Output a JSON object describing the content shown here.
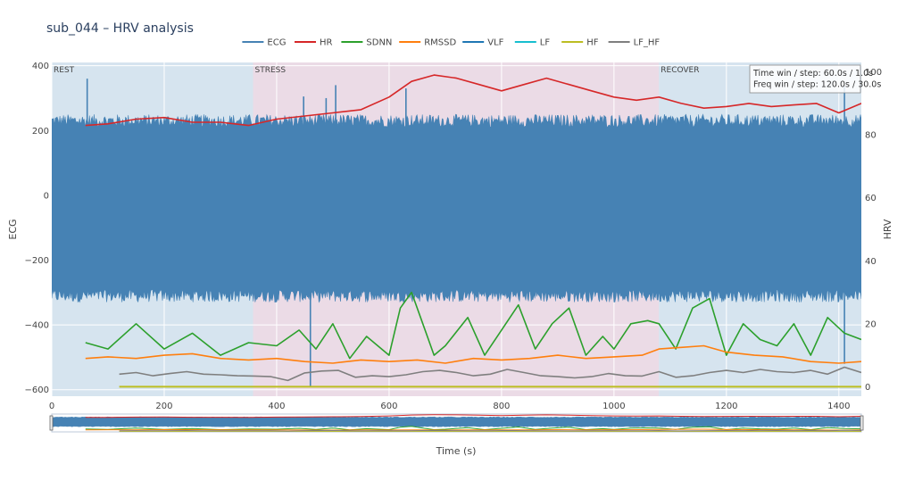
{
  "chart_data": {
    "type": "line",
    "title": "sub_044 – HRV analysis",
    "xlabel": "Time (s)",
    "ylabel_left": "ECG",
    "ylabel_right": "HRV",
    "xlim": [
      0,
      1440
    ],
    "ylim_left": [
      -620,
      410
    ],
    "ylim_right": [
      -3,
      103
    ],
    "x_ticks": [
      0,
      200,
      400,
      600,
      800,
      1000,
      1200,
      1400
    ],
    "y_left_ticks": [
      400,
      200,
      0,
      -200,
      -400,
      -600
    ],
    "y_right_ticks": [
      100,
      80,
      60,
      40,
      20,
      0
    ],
    "grid": true,
    "legend_position": "top-center",
    "annotation": [
      "Time win / step: 60.0s / 1.0s",
      "Freq win / step: 120.0s / 30.0s"
    ],
    "phases": [
      {
        "label": "REST",
        "start": 0,
        "end": 358,
        "color": "#d6e4ef"
      },
      {
        "label": "STRESS",
        "start": 358,
        "end": 1080,
        "color": "#ebdbe6"
      },
      {
        "label": "RECOVER",
        "start": 1080,
        "end": 1440,
        "color": "#d6e4ef"
      }
    ],
    "ecg": {
      "name": "ECG",
      "color": "#4682b4",
      "band_upper": 230,
      "band_lower": -310,
      "spikes": [
        [
          63,
          360
        ],
        [
          448,
          305
        ],
        [
          460,
          -590
        ],
        [
          488,
          300
        ],
        [
          505,
          340
        ],
        [
          630,
          330
        ],
        [
          1410,
          335
        ],
        [
          1410,
          -520
        ]
      ]
    },
    "series": [
      {
        "name": "HR",
        "color": "#d62728",
        "axis": "right",
        "x": [
          60,
          100,
          150,
          200,
          250,
          300,
          350,
          400,
          450,
          500,
          550,
          600,
          640,
          680,
          720,
          760,
          800,
          840,
          880,
          920,
          960,
          1000,
          1040,
          1080,
          1120,
          1160,
          1200,
          1240,
          1280,
          1320,
          1360,
          1400,
          1440
        ],
        "y": [
          83,
          83.5,
          85,
          85.5,
          84,
          84,
          83,
          85,
          86,
          87,
          88,
          92,
          97,
          99,
          98,
          96,
          94,
          96,
          98,
          96,
          94,
          92,
          91,
          92,
          90,
          88.5,
          89,
          90,
          89,
          89.5,
          90,
          87,
          90
        ]
      },
      {
        "name": "SDNN",
        "color": "#2ca02c",
        "axis": "right",
        "x": [
          60,
          100,
          150,
          200,
          250,
          300,
          350,
          400,
          440,
          470,
          500,
          530,
          560,
          600,
          620,
          640,
          660,
          680,
          700,
          740,
          770,
          800,
          830,
          860,
          890,
          920,
          950,
          980,
          1000,
          1030,
          1060,
          1080,
          1110,
          1140,
          1170,
          1200,
          1230,
          1260,
          1290,
          1320,
          1350,
          1380,
          1410,
          1440
        ],
        "y": [
          14,
          12,
          20,
          12,
          17,
          10,
          14,
          13,
          18,
          12,
          20,
          9,
          16,
          10,
          25,
          30,
          20,
          10,
          13,
          22,
          10,
          18,
          26,
          12,
          20,
          25,
          10,
          16,
          12,
          20,
          21,
          20,
          12,
          25,
          28,
          10,
          20,
          15,
          13,
          20,
          10,
          22,
          17,
          15
        ]
      },
      {
        "name": "RMSSD",
        "color": "#ff7f0e",
        "axis": "right",
        "x": [
          60,
          100,
          150,
          200,
          250,
          300,
          350,
          400,
          450,
          500,
          550,
          600,
          650,
          700,
          750,
          800,
          850,
          900,
          950,
          1000,
          1050,
          1080,
          1120,
          1160,
          1200,
          1250,
          1300,
          1350,
          1400,
          1440
        ],
        "y": [
          9,
          9.5,
          9,
          10,
          10.5,
          9,
          8.5,
          9,
          8,
          7.5,
          8.5,
          8,
          8.5,
          7.5,
          9,
          8.5,
          9,
          10,
          9,
          9.5,
          10,
          12,
          12.5,
          13,
          11,
          10,
          9.5,
          8,
          7.5,
          8
        ]
      },
      {
        "name": "VLF",
        "color": "#1f77b4",
        "axis": "right",
        "x": [],
        "y": []
      },
      {
        "name": "LF",
        "color": "#17becf",
        "axis": "right",
        "x": [],
        "y": []
      },
      {
        "name": "HF",
        "color": "#bcbd22",
        "axis": "right",
        "x": [
          120,
          1440
        ],
        "y": [
          0,
          0
        ]
      },
      {
        "name": "LF_HF",
        "color": "#7f7f7f",
        "axis": "right",
        "x": [
          120,
          150,
          180,
          210,
          240,
          270,
          300,
          330,
          360,
          390,
          420,
          450,
          480,
          510,
          540,
          570,
          600,
          630,
          660,
          690,
          720,
          750,
          780,
          810,
          840,
          870,
          900,
          930,
          960,
          990,
          1020,
          1050,
          1080,
          1110,
          1140,
          1170,
          1200,
          1230,
          1260,
          1290,
          1320,
          1350,
          1380,
          1410,
          1440
        ],
        "y": [
          4,
          4.5,
          3.5,
          4.2,
          4.8,
          4,
          3.8,
          3.5,
          3.4,
          3.2,
          2,
          4.4,
          5,
          5.2,
          3,
          3.5,
          3.2,
          3.8,
          4.8,
          5.2,
          4.5,
          3.5,
          4,
          5.5,
          4.5,
          3.5,
          3.2,
          2.8,
          3.2,
          4.2,
          3.5,
          3.4,
          4.8,
          3,
          3.5,
          4.5,
          5.2,
          4.5,
          5.5,
          4.8,
          4.5,
          5.2,
          4,
          6.2,
          4.5
        ]
      }
    ],
    "legend": [
      "ECG",
      "HR",
      "SDNN",
      "RMSSD",
      "VLF",
      "LF",
      "HF",
      "LF_HF"
    ],
    "legend_colors": [
      "#4682b4",
      "#d62728",
      "#2ca02c",
      "#ff7f0e",
      "#1f77b4",
      "#17becf",
      "#bcbd22",
      "#7f7f7f"
    ]
  }
}
